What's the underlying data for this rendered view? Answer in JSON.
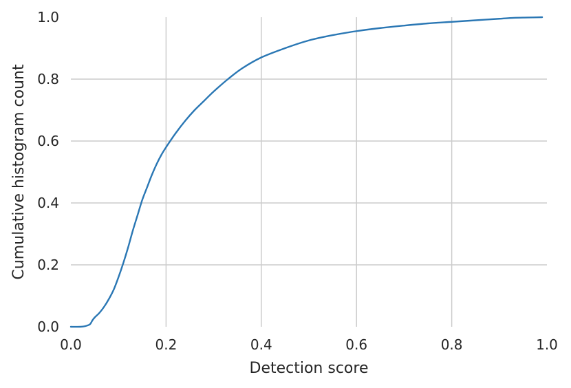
{
  "chart_data": {
    "type": "line",
    "title": "",
    "xlabel": "Detection score",
    "ylabel": "Cumulative histogram count",
    "xlim": [
      0.0,
      1.0
    ],
    "ylim": [
      0.0,
      1.0
    ],
    "x_ticks": [
      "0.0",
      "0.2",
      "0.4",
      "0.6",
      "0.8",
      "1.0"
    ],
    "y_ticks": [
      "0.0",
      "0.2",
      "0.4",
      "0.6",
      "0.8",
      "1.0"
    ],
    "grid": true,
    "legend": "none",
    "series": [
      {
        "color": "#2a77b4",
        "x": [
          0.0,
          0.02,
          0.03,
          0.04,
          0.045,
          0.05,
          0.06,
          0.07,
          0.08,
          0.09,
          0.1,
          0.11,
          0.12,
          0.13,
          0.14,
          0.15,
          0.16,
          0.17,
          0.18,
          0.19,
          0.2,
          0.22,
          0.24,
          0.26,
          0.28,
          0.3,
          0.33,
          0.36,
          0.4,
          0.45,
          0.5,
          0.55,
          0.6,
          0.65,
          0.7,
          0.75,
          0.8,
          0.85,
          0.9,
          0.93,
          0.96,
          0.99
        ],
        "y": [
          0.0,
          0.0,
          0.002,
          0.008,
          0.02,
          0.03,
          0.045,
          0.065,
          0.09,
          0.12,
          0.16,
          0.205,
          0.255,
          0.31,
          0.36,
          0.41,
          0.45,
          0.49,
          0.525,
          0.555,
          0.58,
          0.625,
          0.665,
          0.7,
          0.73,
          0.76,
          0.8,
          0.835,
          0.87,
          0.9,
          0.925,
          0.942,
          0.955,
          0.965,
          0.973,
          0.98,
          0.985,
          0.99,
          0.995,
          0.998,
          0.999,
          1.0
        ]
      }
    ]
  }
}
